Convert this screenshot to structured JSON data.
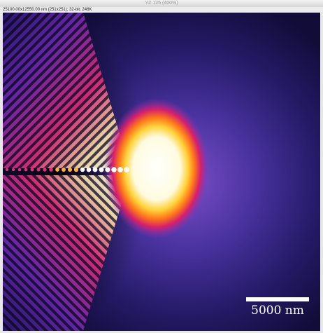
{
  "window": {
    "title": "YZ 125 (400%)",
    "info": "25100.00x12550.00 nm (251x251); 32-bit; 246K"
  },
  "image": {
    "scale_bar_label": "5000 nm"
  }
}
